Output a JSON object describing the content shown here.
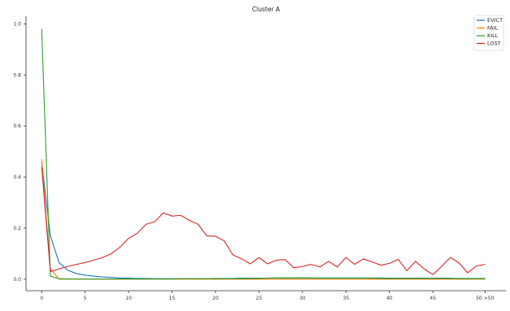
{
  "chart_data": {
    "type": "line",
    "title": "Cluster A",
    "xlabel": "",
    "ylabel": "",
    "x": [
      0,
      1,
      2,
      3,
      4,
      5,
      6,
      7,
      8,
      9,
      10,
      11,
      12,
      13,
      14,
      15,
      16,
      17,
      18,
      19,
      20,
      21,
      22,
      23,
      24,
      25,
      26,
      27,
      28,
      29,
      30,
      31,
      32,
      33,
      34,
      35,
      36,
      37,
      38,
      39,
      40,
      41,
      42,
      43,
      44,
      45,
      46,
      47,
      48,
      49,
      50,
      51
    ],
    "xticks": [
      0,
      5,
      10,
      15,
      20,
      25,
      30,
      35,
      40,
      45,
      51
    ],
    "xtick_labels": [
      "0",
      "5",
      "10",
      "15",
      "20",
      "25",
      "30",
      "35",
      "40",
      "45",
      "50 >50"
    ],
    "xlim": [
      -1.8,
      53.4
    ],
    "yticks": [
      0.0,
      0.2,
      0.4,
      0.6,
      0.8,
      1.0
    ],
    "ytick_labels": [
      "0.0",
      "0.2",
      "0.4",
      "0.6",
      "0.8",
      "1.0"
    ],
    "ylim": [
      -0.045,
      1.03
    ],
    "legend_position": "top-right",
    "grid": false,
    "series": [
      {
        "name": "EVICT",
        "color": "#1f77b4",
        "values": [
          0.46,
          0.17,
          0.065,
          0.035,
          0.022,
          0.016,
          0.012,
          0.009,
          0.007,
          0.005,
          0.004,
          0.003,
          0.003,
          0.002,
          0.002,
          0.002,
          0.002,
          0.002,
          0.002,
          0.002,
          0.003,
          0.003,
          0.003,
          0.004,
          0.004,
          0.004,
          0.004,
          0.005,
          0.005,
          0.005,
          0.005,
          0.005,
          0.005,
          0.005,
          0.005,
          0.005,
          0.005,
          0.005,
          0.005,
          0.005,
          0.004,
          0.004,
          0.004,
          0.004,
          0.004,
          0.004,
          0.004,
          0.004,
          0.003,
          0.003,
          0.003,
          0.003
        ]
      },
      {
        "name": "FAIL",
        "color": "#ff7f0e",
        "values": [
          0.47,
          0.04,
          0.0,
          0.0,
          0.0,
          0.0,
          0.0,
          0.0,
          0.0,
          0.0,
          0.0,
          0.0,
          0.0,
          0.0,
          0.0,
          0.0,
          0.0,
          0.0,
          0.0,
          0.0,
          0.0,
          0.0,
          0.0,
          0.0,
          0.0,
          0.0,
          0.0,
          0.0,
          0.0,
          0.0,
          0.0,
          0.0,
          0.0,
          0.0,
          0.0,
          0.0,
          0.0,
          0.0,
          0.0,
          0.0,
          0.0,
          0.0,
          0.0,
          0.0,
          0.0,
          0.0,
          0.0,
          0.0,
          0.0,
          0.0,
          0.0,
          0.0
        ]
      },
      {
        "name": "KILL",
        "color": "#2ca02c",
        "values": [
          0.98,
          0.012,
          0.002,
          0.001,
          0.001,
          0.001,
          0.001,
          0.001,
          0.001,
          0.001,
          0.001,
          0.001,
          0.001,
          0.001,
          0.001,
          0.001,
          0.002,
          0.002,
          0.002,
          0.002,
          0.002,
          0.002,
          0.002,
          0.002,
          0.003,
          0.003,
          0.004,
          0.005,
          0.005,
          0.005,
          0.006,
          0.005,
          0.004,
          0.004,
          0.004,
          0.004,
          0.004,
          0.004,
          0.004,
          0.003,
          0.003,
          0.003,
          0.003,
          0.003,
          0.003,
          0.003,
          0.003,
          0.003,
          0.002,
          0.002,
          0.002,
          0.002
        ]
      },
      {
        "name": "LOST",
        "color": "#d62728",
        "values": [
          0.44,
          0.03,
          0.04,
          0.05,
          0.058,
          0.065,
          0.075,
          0.085,
          0.1,
          0.125,
          0.16,
          0.18,
          0.215,
          0.225,
          0.26,
          0.247,
          0.25,
          0.23,
          0.215,
          0.17,
          0.168,
          0.15,
          0.095,
          0.08,
          0.06,
          0.085,
          0.06,
          0.075,
          0.077,
          0.045,
          0.05,
          0.058,
          0.048,
          0.07,
          0.048,
          0.085,
          0.058,
          0.08,
          0.068,
          0.055,
          0.062,
          0.078,
          0.033,
          0.07,
          0.04,
          0.018,
          0.05,
          0.085,
          0.064,
          0.025,
          0.052,
          0.058
        ]
      }
    ]
  }
}
